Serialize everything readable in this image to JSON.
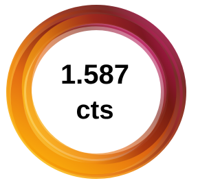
{
  "badge": {
    "value": "1.587",
    "unit": "cts"
  }
}
